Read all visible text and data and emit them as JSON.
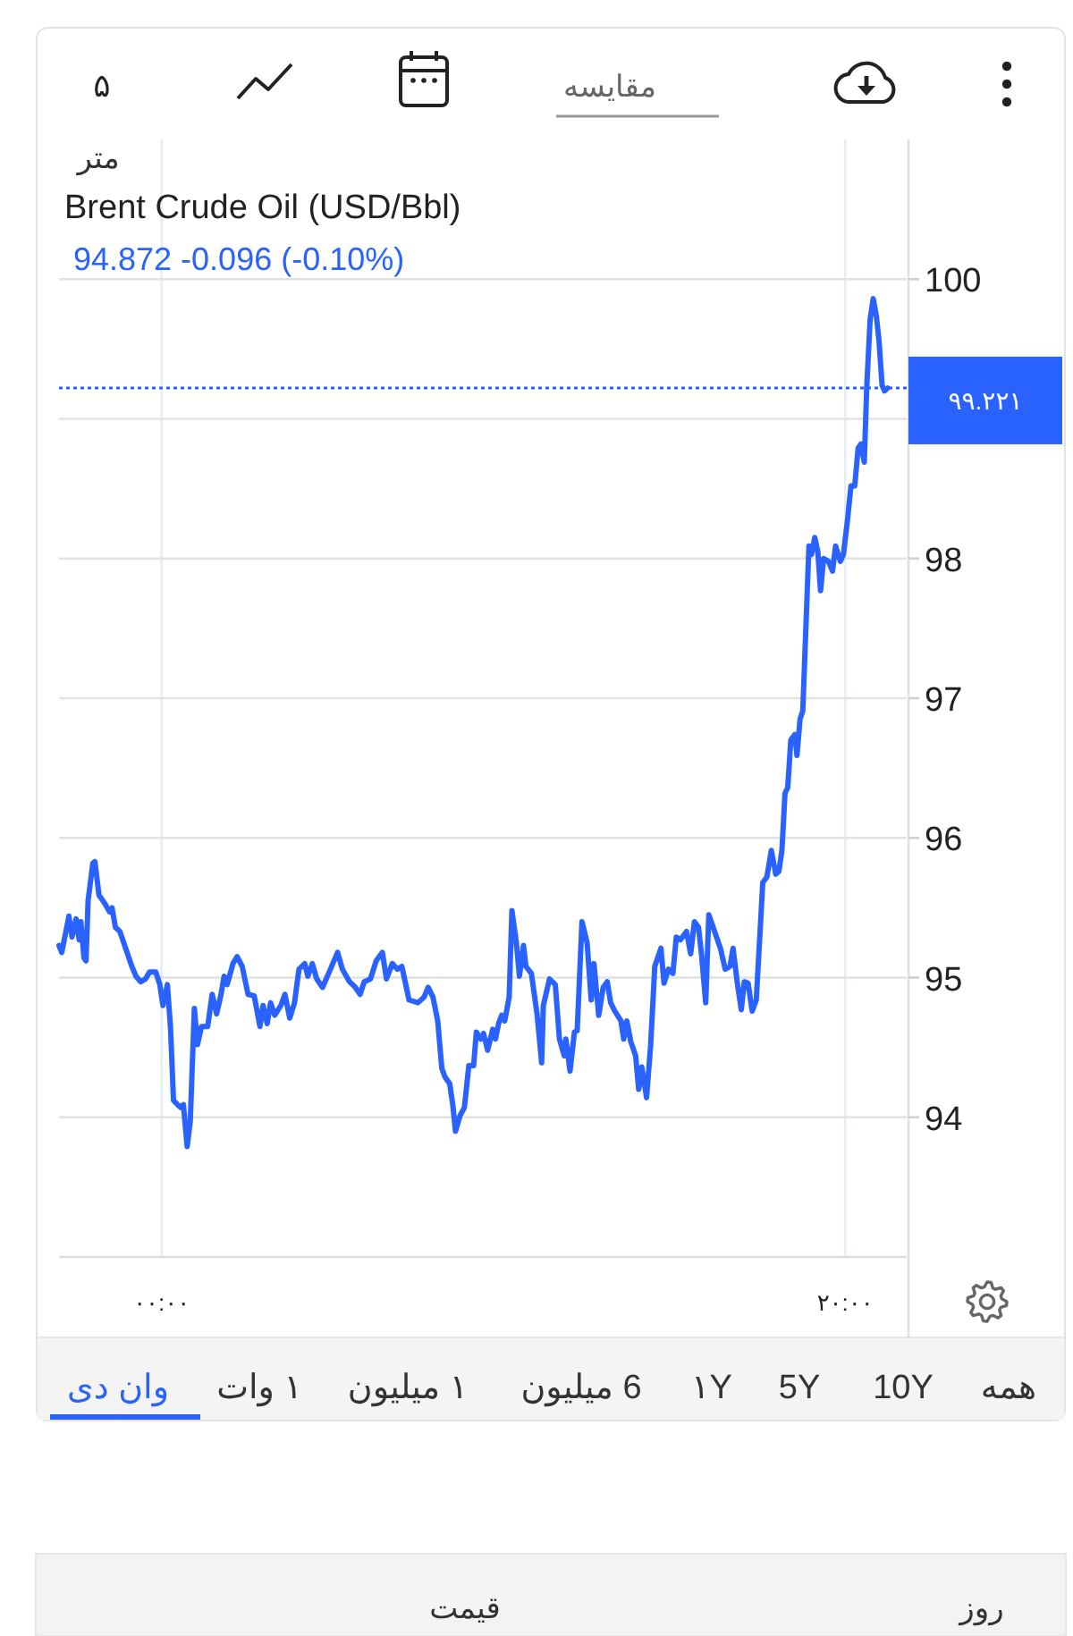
{
  "chart_data": {
    "type": "line",
    "title": "Brent Crude Oil (USD/Bbl)",
    "subtitle": "94.872 -0.096 (-0.10%)",
    "annotations": [
      "متر",
      "۵",
      "مقایسه",
      "همه",
      "10Y",
      "5Y",
      "۱Y",
      "6 میلیون",
      "۱ میلیون",
      "۱ وات",
      "وان دی",
      "روز",
      "قیمت"
    ],
    "color": "#2962ff",
    "x": [
      -3.0,
      -2.92,
      -2.71,
      -2.62,
      -2.5,
      -2.41,
      -2.36,
      -2.27,
      -2.21,
      -2.15,
      -2.01,
      -1.95,
      -1.83,
      -1.66,
      -1.52,
      -1.45,
      -1.35,
      -1.22,
      -1.05,
      -0.87,
      -0.75,
      -0.61,
      -0.47,
      -0.35,
      -0.17,
      -0.05,
      0.04,
      0.17,
      0.26,
      0.35,
      0.47,
      0.56,
      0.64,
      0.75,
      0.84,
      0.96,
      1.05,
      1.17,
      1.35,
      1.48,
      1.61,
      1.74,
      1.83,
      1.92,
      2.09,
      2.21,
      2.36,
      2.53,
      2.71,
      2.88,
      2.97,
      3.09,
      3.19,
      3.31,
      3.49,
      3.61,
      3.75,
      3.89,
      4.02,
      4.19,
      4.28,
      4.41,
      4.54,
      4.71,
      4.94,
      5.15,
      5.29,
      5.5,
      5.67,
      5.81,
      5.93,
      6.11,
      6.28,
      6.46,
      6.58,
      6.75,
      6.9,
      7.03,
      7.24,
      7.5,
      7.68,
      7.8,
      7.94,
      8.08,
      8.2,
      8.29,
      8.43,
      8.52,
      8.6,
      8.73,
      8.86,
      8.99,
      9.13,
      9.21,
      9.34,
      9.42,
      9.54,
      9.69,
      9.77,
      9.86,
      9.95,
      10.04,
      10.17,
      10.25,
      10.38,
      10.47,
      10.59,
      10.66,
      10.82,
      10.99,
      11.12,
      11.17,
      11.35,
      11.52,
      11.64,
      11.78,
      11.83,
      11.95,
      12.08,
      12.16,
      12.3,
      12.45,
      12.57,
      12.65,
      12.79,
      12.92,
      13.04,
      13.14,
      13.26,
      13.44,
      13.52,
      13.61,
      13.73,
      13.87,
      13.96,
      14.05,
      14.19,
      14.31,
      14.43,
      14.61,
      14.7,
      14.83,
      14.96,
      15.06,
      15.18,
      15.36,
      15.48,
      15.59,
      15.71,
      15.8,
      15.92,
      16.01,
      16.18,
      16.35,
      16.49,
      16.63,
      16.72,
      16.84,
      16.96,
      17.05,
      17.16,
      17.28,
      17.4,
      17.59,
      17.71,
      17.84,
      17.97,
      18.06,
      18.15,
      18.24,
      18.32,
      18.41,
      18.53,
      18.59,
      18.68,
      18.76,
      18.94,
      19.02,
      19.11,
      19.2,
      19.28,
      19.37,
      19.51,
      19.63,
      19.72,
      19.86,
      19.95,
      20.07,
      20.17,
      20.28,
      20.38,
      20.46,
      20.56,
      20.63,
      20.73,
      20.82,
      20.91,
      20.99,
      21.08,
      21.15,
      21.24
    ],
    "values": [
      95.23,
      95.18,
      95.44,
      95.29,
      95.42,
      95.27,
      95.4,
      95.14,
      95.12,
      95.55,
      95.82,
      95.83,
      95.59,
      95.53,
      95.47,
      95.5,
      95.36,
      95.33,
      95.21,
      95.08,
      95.01,
      94.97,
      94.99,
      95.04,
      95.04,
      94.95,
      94.8,
      94.95,
      94.65,
      94.12,
      94.09,
      94.07,
      94.09,
      93.79,
      93.97,
      94.78,
      94.52,
      94.65,
      94.65,
      94.88,
      94.74,
      94.88,
      95.01,
      94.95,
      95.1,
      95.15,
      95.08,
      94.88,
      94.87,
      94.65,
      94.8,
      94.67,
      94.82,
      94.73,
      94.8,
      94.88,
      94.71,
      94.82,
      95.06,
      95.1,
      95.01,
      95.1,
      94.99,
      94.93,
      95.06,
      95.18,
      95.06,
      94.97,
      94.93,
      94.88,
      94.97,
      94.99,
      95.12,
      95.18,
      94.99,
      95.1,
      95.06,
      95.08,
      94.84,
      94.82,
      94.86,
      94.93,
      94.86,
      94.69,
      94.35,
      94.29,
      94.24,
      94.09,
      93.9,
      94.01,
      94.07,
      94.37,
      94.37,
      94.61,
      94.56,
      94.6,
      94.48,
      94.63,
      94.56,
      94.67,
      94.73,
      94.69,
      94.86,
      95.48,
      95.25,
      95.01,
      95.23,
      95.08,
      95.03,
      94.73,
      94.39,
      94.8,
      94.99,
      94.95,
      94.56,
      94.44,
      94.56,
      94.33,
      94.61,
      94.62,
      95.4,
      95.25,
      94.84,
      95.1,
      94.73,
      94.93,
      94.97,
      94.82,
      94.76,
      94.69,
      94.56,
      94.69,
      94.54,
      94.44,
      94.2,
      94.36,
      94.14,
      94.52,
      95.08,
      95.21,
      94.96,
      95.06,
      95.03,
      95.29,
      95.27,
      95.33,
      95.17,
      95.4,
      95.36,
      95.16,
      94.82,
      95.45,
      95.33,
      95.21,
      95.06,
      95.08,
      95.21,
      94.97,
      94.77,
      94.97,
      94.96,
      94.76,
      94.84,
      95.68,
      95.72,
      95.91,
      95.74,
      95.76,
      95.91,
      96.32,
      96.36,
      96.7,
      96.74,
      96.59,
      96.85,
      96.91,
      98.09,
      98.03,
      98.15,
      98.05,
      97.77,
      98.0,
      97.98,
      97.91,
      98.09,
      97.98,
      98.03,
      98.28,
      98.52,
      98.52,
      98.79,
      98.82,
      98.69,
      99.22,
      99.71,
      99.86,
      99.74,
      99.56,
      99.24,
      99.2,
      99.22
    ],
    "xlim": [
      -3,
      21.8
    ],
    "ylim": [
      93,
      101
    ],
    "xticks": [
      {
        "value": 0,
        "label": "۰۰:۰۰"
      },
      {
        "value": 20,
        "label": "۲۰:۰۰"
      }
    ],
    "yticks": [
      94,
      95,
      96,
      97,
      98,
      {
        "value": 99,
        "label": null
      },
      100
    ],
    "grid": true,
    "ref_lines": [
      {
        "axis": "y",
        "value": 99.221,
        "label": "۹۹.۲۲۱",
        "color": "#2962ff",
        "line_style": "dotted"
      }
    ]
  }
}
